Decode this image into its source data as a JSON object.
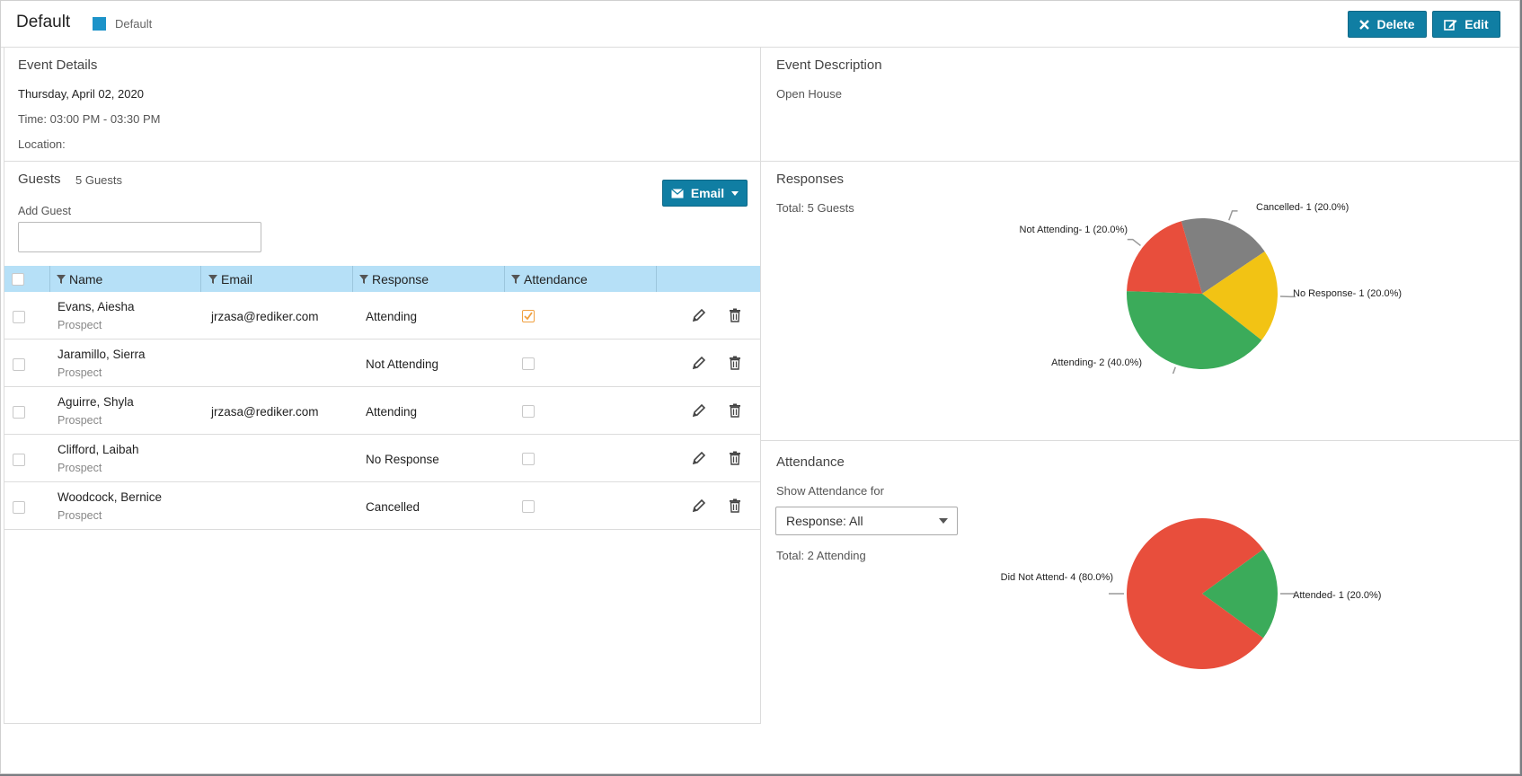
{
  "header": {
    "title": "Default",
    "calendar_name": "Default",
    "calendar_color": "#1c93c9",
    "delete_label": "Delete",
    "edit_label": "Edit"
  },
  "event_details": {
    "heading": "Event Details",
    "date": "Thursday, April 02, 2020",
    "time": "Time: 03:00 PM - 03:30 PM",
    "location": "Location:"
  },
  "event_description": {
    "heading": "Event Description",
    "text": "Open House"
  },
  "guests": {
    "heading": "Guests",
    "count": "5 Guests",
    "add_guest_label": "Add Guest",
    "email_button": "Email",
    "columns": [
      "Name",
      "Email",
      "Response",
      "Attendance"
    ],
    "rows": [
      {
        "name": "Evans, Aiesha",
        "type": "Prospect",
        "email": "jrzasa@rediker.com",
        "response": "Attending",
        "attended": true
      },
      {
        "name": "Jaramillo, Sierra",
        "type": "Prospect",
        "email": "",
        "response": "Not Attending",
        "attended": false
      },
      {
        "name": "Aguirre, Shyla",
        "type": "Prospect",
        "email": "jrzasa@rediker.com",
        "response": "Attending",
        "attended": false
      },
      {
        "name": "Clifford, Laibah",
        "type": "Prospect",
        "email": "",
        "response": "No Response",
        "attended": false
      },
      {
        "name": "Woodcock, Bernice",
        "type": "Prospect",
        "email": "",
        "response": "Cancelled",
        "attended": false
      }
    ]
  },
  "responses": {
    "heading": "Responses",
    "total": "Total: 5 Guests"
  },
  "attendance": {
    "heading": "Attendance",
    "show_for_label": "Show Attendance for",
    "filter_value": "Response: All",
    "total": "Total: 2 Attending"
  },
  "chart_data": [
    {
      "type": "pie",
      "slices": [
        {
          "label": "Cancelled- 1 (20.0%)",
          "value": 1,
          "color": "#808080"
        },
        {
          "label": "No Response- 1 (20.0%)",
          "value": 1,
          "color": "#f2c314"
        },
        {
          "label": "Attending- 2 (40.0%)",
          "value": 2,
          "color": "#3bab5a"
        },
        {
          "label": "Not Attending- 1 (20.0%)",
          "value": 1,
          "color": "#e84e3c"
        }
      ]
    },
    {
      "type": "pie",
      "slices": [
        {
          "label": "Attended- 1 (20.0%)",
          "value": 1,
          "color": "#3bab5a"
        },
        {
          "label": "Did Not Attend- 4 (80.0%)",
          "value": 4,
          "color": "#e84e3c"
        }
      ]
    }
  ]
}
